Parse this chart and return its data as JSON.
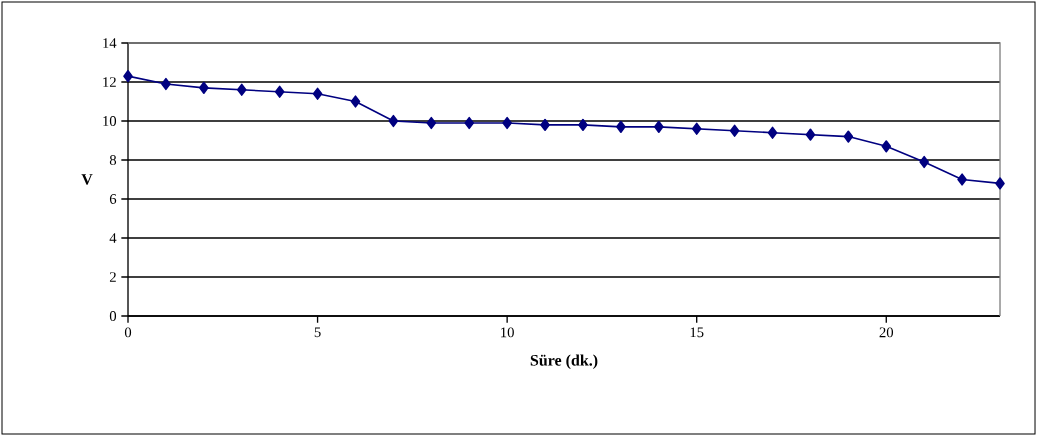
{
  "chart_data": {
    "type": "line",
    "xlabel": "Süre (dk.)",
    "ylabel": "V",
    "x": [
      0,
      1,
      2,
      3,
      4,
      5,
      6,
      7,
      8,
      9,
      10,
      11,
      12,
      13,
      14,
      15,
      16,
      17,
      18,
      19,
      20,
      21,
      22,
      23
    ],
    "series": [
      {
        "color": "#000080",
        "values": [
          12.3,
          11.9,
          11.7,
          11.6,
          11.5,
          11.4,
          11.0,
          10.0,
          9.9,
          9.9,
          9.9,
          9.8,
          9.8,
          9.7,
          9.7,
          9.6,
          9.5,
          9.4,
          9.3,
          9.2,
          8.7,
          7.9,
          7.0,
          6.8
        ]
      }
    ],
    "xlim": [
      0,
      23
    ],
    "ylim": [
      0,
      14
    ],
    "xticks": [
      0,
      5,
      10,
      15,
      20
    ],
    "yticks": [
      0,
      2,
      4,
      6,
      8,
      10,
      12,
      14
    ],
    "grid": "y",
    "marker": "diamond",
    "line_style": "solid"
  }
}
